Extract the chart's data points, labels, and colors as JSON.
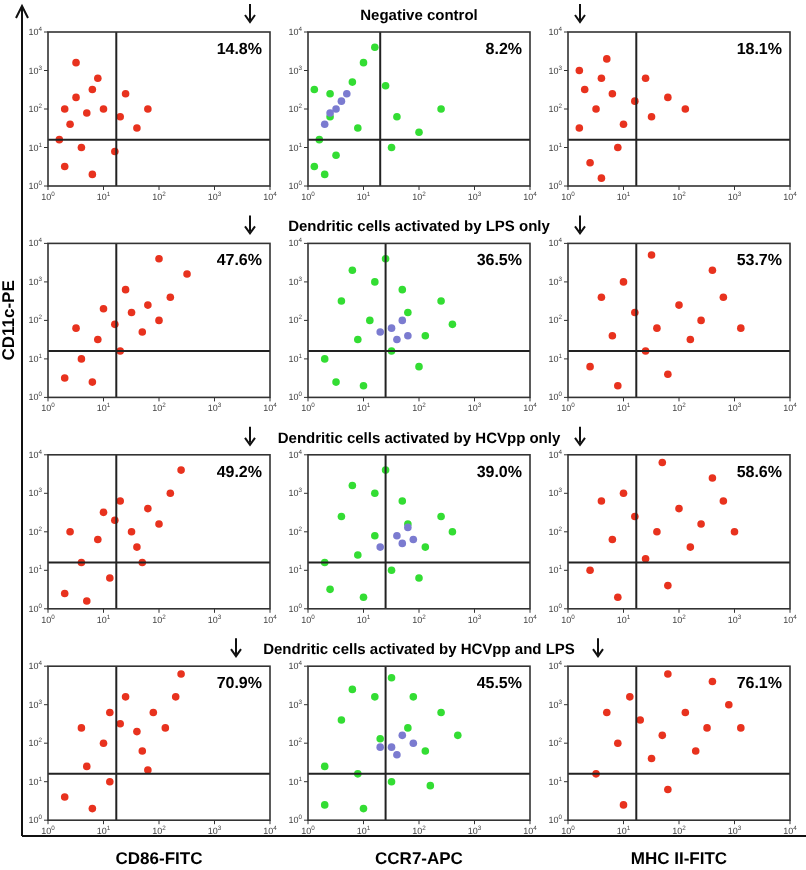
{
  "chart_data": [
    {
      "type": "scatter",
      "annotations": [
        "14.8%"
      ],
      "log": "xy",
      "xlim": [
        1,
        10000
      ],
      "ylim": [
        1,
        10000
      ],
      "xticks": [
        {
          "value": 1,
          "label": "10$^{0}$"
        },
        {
          "value": 10,
          "label": "10$^{1}$"
        },
        {
          "value": 100,
          "label": "10$^{2}$"
        },
        {
          "value": 1000,
          "label": "10$^{3}$"
        },
        {
          "value": 10000,
          "label": "10$^{4}$"
        }
      ],
      "yticks": [
        {
          "value": 1,
          "label": "10$^{0}$"
        },
        {
          "value": 10,
          "label": "10$^{1}$"
        },
        {
          "value": 100,
          "label": "10$^{2}$"
        },
        {
          "value": 1000,
          "label": "10$^{3}$"
        },
        {
          "value": 10000,
          "label": "10$^{4}$"
        }
      ],
      "marker": "circle",
      "ref_lines": [
        {
          "axis": "x",
          "value": 17
        },
        {
          "axis": "y",
          "value": 16
        }
      ],
      "series": [
        {
          "color": "#e8321e",
          "x": [
            2,
            3.2,
            5,
            2.5,
            6.3,
            1.6,
            4,
            10,
            20,
            40,
            63,
            7.9,
            2,
            6.3,
            16,
            25,
            3.2
          ],
          "values": [
            100,
            200,
            79,
            40,
            320,
            16,
            10,
            100,
            63,
            32,
            100,
            630,
            3.2,
            2,
            7.9,
            250,
            1600
          ]
        }
      ]
    },
    {
      "type": "scatter",
      "title": "Negative control",
      "annotations": [
        "8.2%"
      ],
      "log": "xy",
      "xlim": [
        1,
        10000
      ],
      "ylim": [
        1,
        10000
      ],
      "xticks": [
        {
          "value": 1,
          "label": "10$^{0}$"
        },
        {
          "value": 10,
          "label": "10$^{1}$"
        },
        {
          "value": 100,
          "label": "10$^{2}$"
        },
        {
          "value": 1000,
          "label": "10$^{3}$"
        },
        {
          "value": 10000,
          "label": "10$^{4}$"
        }
      ],
      "yticks": [
        {
          "value": 1,
          "label": "10$^{0}$"
        },
        {
          "value": 10,
          "label": "10$^{1}$"
        },
        {
          "value": 100,
          "label": "10$^{2}$"
        },
        {
          "value": 1000,
          "label": "10$^{3}$"
        },
        {
          "value": 10000,
          "label": "10$^{4}$"
        }
      ],
      "marker": "circle",
      "ref_lines": [
        {
          "axis": "x",
          "value": 20
        },
        {
          "axis": "y",
          "value": 16
        }
      ],
      "series": [
        {
          "color": "#33dd33",
          "x": [
            1.3,
            1.6,
            2.5,
            2.5,
            6.3,
            10,
            16,
            2,
            7.9,
            32,
            40,
            100,
            250,
            1.3,
            3.2,
            25
          ],
          "values": [
            3.2,
            16,
            63,
            250,
            500,
            1600,
            4000,
            2,
            32,
            10,
            63,
            25,
            100,
            320,
            6.3,
            400
          ]
        },
        {
          "color": "#7b7bd0",
          "x": [
            2,
            3.2,
            5,
            2.5,
            4
          ],
          "values": [
            40,
            100,
            250,
            79,
            160
          ]
        }
      ]
    },
    {
      "type": "scatter",
      "annotations": [
        "18.1%"
      ],
      "log": "xy",
      "xlim": [
        1,
        10000
      ],
      "ylim": [
        1,
        10000
      ],
      "xticks": [
        {
          "value": 1,
          "label": "10$^{0}$"
        },
        {
          "value": 10,
          "label": "10$^{1}$"
        },
        {
          "value": 100,
          "label": "10$^{2}$"
        },
        {
          "value": 1000,
          "label": "10$^{3}$"
        },
        {
          "value": 10000,
          "label": "10$^{4}$"
        }
      ],
      "yticks": [
        {
          "value": 1,
          "label": "10$^{0}$"
        },
        {
          "value": 10,
          "label": "10$^{1}$"
        },
        {
          "value": 100,
          "label": "10$^{2}$"
        },
        {
          "value": 1000,
          "label": "10$^{3}$"
        },
        {
          "value": 10000,
          "label": "10$^{4}$"
        }
      ],
      "marker": "circle",
      "ref_lines": [
        {
          "axis": "x",
          "value": 17
        },
        {
          "axis": "y",
          "value": 16
        }
      ],
      "series": [
        {
          "color": "#e8321e",
          "x": [
            2,
            4,
            3.2,
            6.3,
            1.6,
            2.5,
            7.9,
            16,
            32,
            63,
            130,
            5,
            10,
            1.6,
            25,
            4
          ],
          "values": [
            320,
            630,
            100,
            250,
            32,
            4,
            10,
            160,
            63,
            200,
            100,
            2000,
            40,
            1000,
            630,
            1.6
          ]
        }
      ]
    },
    {
      "type": "scatter",
      "ylabel": "CD11c-PE",
      "annotations": [
        "47.6%"
      ],
      "log": "xy",
      "xlim": [
        1,
        10000
      ],
      "ylim": [
        1,
        10000
      ],
      "xticks": [
        {
          "value": 1,
          "label": "10$^{0}$"
        },
        {
          "value": 10,
          "label": "10$^{1}$"
        },
        {
          "value": 100,
          "label": "10$^{2}$"
        },
        {
          "value": 1000,
          "label": "10$^{3}$"
        },
        {
          "value": 10000,
          "label": "10$^{4}$"
        }
      ],
      "yticks": [
        {
          "value": 1,
          "label": "10$^{0}$"
        },
        {
          "value": 10,
          "label": "10$^{1}$"
        },
        {
          "value": 100,
          "label": "10$^{2}$"
        },
        {
          "value": 1000,
          "label": "10$^{3}$"
        },
        {
          "value": 10000,
          "label": "10$^{4}$"
        }
      ],
      "marker": "circle",
      "ref_lines": [
        {
          "axis": "x",
          "value": 17
        },
        {
          "axis": "y",
          "value": 16
        }
      ],
      "series": [
        {
          "color": "#e8321e",
          "x": [
            2,
            4,
            7.9,
            16,
            32,
            63,
            25,
            50,
            10,
            100,
            160,
            20,
            6.3,
            320,
            100,
            3.2
          ],
          "values": [
            3.2,
            10,
            32,
            79,
            160,
            250,
            630,
            50,
            200,
            100,
            400,
            16,
            2.5,
            1600,
            4000,
            63
          ]
        }
      ]
    },
    {
      "type": "scatter",
      "title": "Dendritic cells activated by LPS only",
      "annotations": [
        "36.5%"
      ],
      "log": "xy",
      "xlim": [
        1,
        10000
      ],
      "ylim": [
        1,
        10000
      ],
      "xticks": [
        {
          "value": 1,
          "label": "10$^{0}$"
        },
        {
          "value": 10,
          "label": "10$^{1}$"
        },
        {
          "value": 100,
          "label": "10$^{2}$"
        },
        {
          "value": 1000,
          "label": "10$^{3}$"
        },
        {
          "value": 10000,
          "label": "10$^{4}$"
        }
      ],
      "yticks": [
        {
          "value": 1,
          "label": "10$^{0}$"
        },
        {
          "value": 10,
          "label": "10$^{1}$"
        },
        {
          "value": 100,
          "label": "10$^{2}$"
        },
        {
          "value": 1000,
          "label": "10$^{3}$"
        },
        {
          "value": 10000,
          "label": "10$^{4}$"
        }
      ],
      "marker": "circle",
      "ref_lines": [
        {
          "axis": "x",
          "value": 25
        },
        {
          "axis": "y",
          "value": 16
        }
      ],
      "series": [
        {
          "color": "#33dd33",
          "x": [
            2,
            4,
            7.9,
            16,
            32,
            63,
            130,
            250,
            10,
            25,
            3.2,
            100,
            50,
            6.3,
            400,
            13
          ],
          "values": [
            10,
            320,
            32,
            1000,
            16,
            160,
            40,
            320,
            2,
            4000,
            2.5,
            6.3,
            630,
            2000,
            79,
            100
          ]
        },
        {
          "color": "#7b7bd0",
          "x": [
            32,
            50,
            40,
            20,
            63
          ],
          "values": [
            63,
            100,
            32,
            50,
            40
          ]
        }
      ]
    },
    {
      "type": "scatter",
      "annotations": [
        "53.7%"
      ],
      "log": "xy",
      "xlim": [
        1,
        10000
      ],
      "ylim": [
        1,
        10000
      ],
      "xticks": [
        {
          "value": 1,
          "label": "10$^{0}$"
        },
        {
          "value": 10,
          "label": "10$^{1}$"
        },
        {
          "value": 100,
          "label": "10$^{2}$"
        },
        {
          "value": 1000,
          "label": "10$^{3}$"
        },
        {
          "value": 10000,
          "label": "10$^{4}$"
        }
      ],
      "yticks": [
        {
          "value": 1,
          "label": "10$^{0}$"
        },
        {
          "value": 10,
          "label": "10$^{1}$"
        },
        {
          "value": 100,
          "label": "10$^{2}$"
        },
        {
          "value": 1000,
          "label": "10$^{3}$"
        },
        {
          "value": 10000,
          "label": "10$^{4}$"
        }
      ],
      "marker": "circle",
      "ref_lines": [
        {
          "axis": "x",
          "value": 17
        },
        {
          "axis": "y",
          "value": 16
        }
      ],
      "series": [
        {
          "color": "#e8321e",
          "x": [
            2.5,
            6.3,
            16,
            40,
            100,
            250,
            630,
            25,
            63,
            160,
            10,
            400,
            4,
            1300,
            32,
            7.9
          ],
          "values": [
            6.3,
            40,
            160,
            63,
            250,
            100,
            400,
            16,
            4,
            32,
            1000,
            2000,
            400,
            63,
            5000,
            2
          ]
        }
      ]
    },
    {
      "type": "scatter",
      "annotations": [
        "49.2%"
      ],
      "log": "xy",
      "xlim": [
        1,
        10000
      ],
      "ylim": [
        1,
        10000
      ],
      "xticks": [
        {
          "value": 1,
          "label": "10$^{0}$"
        },
        {
          "value": 10,
          "label": "10$^{1}$"
        },
        {
          "value": 100,
          "label": "10$^{2}$"
        },
        {
          "value": 1000,
          "label": "10$^{3}$"
        },
        {
          "value": 10000,
          "label": "10$^{4}$"
        }
      ],
      "yticks": [
        {
          "value": 1,
          "label": "10$^{0}$"
        },
        {
          "value": 10,
          "label": "10$^{1}$"
        },
        {
          "value": 100,
          "label": "10$^{2}$"
        },
        {
          "value": 1000,
          "label": "10$^{3}$"
        },
        {
          "value": 10000,
          "label": "10$^{4}$"
        }
      ],
      "marker": "circle",
      "ref_lines": [
        {
          "axis": "x",
          "value": 17
        },
        {
          "axis": "y",
          "value": 16
        }
      ],
      "series": [
        {
          "color": "#e8321e",
          "x": [
            2,
            4,
            7.9,
            16,
            32,
            63,
            20,
            40,
            10,
            100,
            160,
            13,
            5,
            250,
            2.5,
            50
          ],
          "values": [
            2.5,
            16,
            63,
            200,
            100,
            400,
            630,
            40,
            320,
            160,
            1000,
            6.3,
            1.6,
            4000,
            100,
            16
          ]
        }
      ]
    },
    {
      "type": "scatter",
      "title": "Dendritic cells activated by HCVpp only",
      "annotations": [
        "39.0%"
      ],
      "log": "xy",
      "xlim": [
        1,
        10000
      ],
      "ylim": [
        1,
        10000
      ],
      "xticks": [
        {
          "value": 1,
          "label": "10$^{0}$"
        },
        {
          "value": 10,
          "label": "10$^{1}$"
        },
        {
          "value": 100,
          "label": "10$^{2}$"
        },
        {
          "value": 1000,
          "label": "10$^{3}$"
        },
        {
          "value": 10000,
          "label": "10$^{4}$"
        }
      ],
      "yticks": [
        {
          "value": 1,
          "label": "10$^{0}$"
        },
        {
          "value": 10,
          "label": "10$^{1}$"
        },
        {
          "value": 100,
          "label": "10$^{2}$"
        },
        {
          "value": 1000,
          "label": "10$^{3}$"
        },
        {
          "value": 10000,
          "label": "10$^{4}$"
        }
      ],
      "marker": "circle",
      "ref_lines": [
        {
          "axis": "x",
          "value": 25
        },
        {
          "axis": "y",
          "value": 16
        }
      ],
      "series": [
        {
          "color": "#33dd33",
          "x": [
            2,
            4,
            7.9,
            16,
            32,
            63,
            130,
            250,
            10,
            25,
            2.5,
            100,
            50,
            6.3,
            400,
            16
          ],
          "values": [
            16,
            250,
            25,
            1000,
            10,
            160,
            40,
            250,
            2,
            4000,
            3.2,
            6.3,
            630,
            1600,
            100,
            79
          ]
        },
        {
          "color": "#7b7bd0",
          "x": [
            40,
            63,
            50,
            20,
            79
          ],
          "values": [
            79,
            130,
            50,
            40,
            63
          ]
        }
      ]
    },
    {
      "type": "scatter",
      "annotations": [
        "58.6%"
      ],
      "log": "xy",
      "xlim": [
        1,
        10000
      ],
      "ylim": [
        1,
        10000
      ],
      "xticks": [
        {
          "value": 1,
          "label": "10$^{0}$"
        },
        {
          "value": 10,
          "label": "10$^{1}$"
        },
        {
          "value": 100,
          "label": "10$^{2}$"
        },
        {
          "value": 1000,
          "label": "10$^{3}$"
        },
        {
          "value": 10000,
          "label": "10$^{4}$"
        }
      ],
      "yticks": [
        {
          "value": 1,
          "label": "10$^{0}$"
        },
        {
          "value": 10,
          "label": "10$^{1}$"
        },
        {
          "value": 100,
          "label": "10$^{2}$"
        },
        {
          "value": 1000,
          "label": "10$^{3}$"
        },
        {
          "value": 10000,
          "label": "10$^{4}$"
        }
      ],
      "marker": "circle",
      "ref_lines": [
        {
          "axis": "x",
          "value": 17
        },
        {
          "axis": "y",
          "value": 16
        }
      ],
      "series": [
        {
          "color": "#e8321e",
          "x": [
            2.5,
            6.3,
            16,
            40,
            100,
            250,
            630,
            25,
            63,
            160,
            10,
            400,
            4,
            1000,
            50,
            7.9
          ],
          "values": [
            10,
            63,
            250,
            100,
            400,
            160,
            630,
            20,
            4,
            40,
            1000,
            2500,
            630,
            100,
            6300,
            2
          ]
        }
      ]
    },
    {
      "type": "scatter",
      "xlabel": "CD86-FITC",
      "annotations": [
        "70.9%"
      ],
      "log": "xy",
      "xlim": [
        1,
        10000
      ],
      "ylim": [
        1,
        10000
      ],
      "xticks": [
        {
          "value": 1,
          "label": "10$^{0}$"
        },
        {
          "value": 10,
          "label": "10$^{1}$"
        },
        {
          "value": 100,
          "label": "10$^{2}$"
        },
        {
          "value": 1000,
          "label": "10$^{3}$"
        },
        {
          "value": 10000,
          "label": "10$^{4}$"
        }
      ],
      "yticks": [
        {
          "value": 1,
          "label": "10$^{0}$"
        },
        {
          "value": 10,
          "label": "10$^{1}$"
        },
        {
          "value": 100,
          "label": "10$^{2}$"
        },
        {
          "value": 1000,
          "label": "10$^{3}$"
        },
        {
          "value": 10000,
          "label": "10$^{4}$"
        }
      ],
      "marker": "circle",
      "ref_lines": [
        {
          "axis": "x",
          "value": 17
        },
        {
          "axis": "y",
          "value": 16
        }
      ],
      "series": [
        {
          "color": "#e8321e",
          "x": [
            2,
            5,
            10,
            20,
            40,
            79,
            25,
            50,
            13,
            130,
            200,
            13,
            6.3,
            250,
            4,
            63
          ],
          "values": [
            4,
            25,
            100,
            320,
            200,
            630,
            1600,
            63,
            630,
            250,
            1600,
            10,
            2,
            6300,
            250,
            20
          ]
        }
      ]
    },
    {
      "type": "scatter",
      "title": "Dendritic cells activated by HCVpp and LPS",
      "xlabel": "CCR7-APC",
      "annotations": [
        "45.5%"
      ],
      "log": "xy",
      "xlim": [
        1,
        10000
      ],
      "ylim": [
        1,
        10000
      ],
      "xticks": [
        {
          "value": 1,
          "label": "10$^{0}$"
        },
        {
          "value": 10,
          "label": "10$^{1}$"
        },
        {
          "value": 100,
          "label": "10$^{2}$"
        },
        {
          "value": 1000,
          "label": "10$^{3}$"
        },
        {
          "value": 10000,
          "label": "10$^{4}$"
        }
      ],
      "yticks": [
        {
          "value": 1,
          "label": "10$^{0}$"
        },
        {
          "value": 10,
          "label": "10$^{1}$"
        },
        {
          "value": 100,
          "label": "10$^{2}$"
        },
        {
          "value": 1000,
          "label": "10$^{3}$"
        },
        {
          "value": 10000,
          "label": "10$^{4}$"
        }
      ],
      "marker": "circle",
      "ref_lines": [
        {
          "axis": "x",
          "value": 25
        },
        {
          "axis": "y",
          "value": 16
        }
      ],
      "series": [
        {
          "color": "#33dd33",
          "x": [
            2,
            4,
            7.9,
            16,
            32,
            63,
            130,
            250,
            10,
            32,
            2,
            160,
            79,
            6.3,
            500,
            20
          ],
          "values": [
            25,
            400,
            16,
            1600,
            10,
            250,
            63,
            630,
            2,
            5000,
            2.5,
            7.9,
            1600,
            2500,
            160,
            130
          ]
        },
        {
          "color": "#7b7bd0",
          "x": [
            32,
            50,
            40,
            20,
            79
          ],
          "values": [
            79,
            160,
            50,
            79,
            100
          ]
        }
      ]
    },
    {
      "type": "scatter",
      "xlabel": "MHC II-FITC",
      "annotations": [
        "76.1%"
      ],
      "log": "xy",
      "xlim": [
        1,
        10000
      ],
      "ylim": [
        1,
        10000
      ],
      "xticks": [
        {
          "value": 1,
          "label": "10$^{0}$"
        },
        {
          "value": 10,
          "label": "10$^{1}$"
        },
        {
          "value": 100,
          "label": "10$^{2}$"
        },
        {
          "value": 1000,
          "label": "10$^{3}$"
        },
        {
          "value": 10000,
          "label": "10$^{4}$"
        }
      ],
      "yticks": [
        {
          "value": 1,
          "label": "10$^{0}$"
        },
        {
          "value": 10,
          "label": "10$^{1}$"
        },
        {
          "value": 100,
          "label": "10$^{2}$"
        },
        {
          "value": 1000,
          "label": "10$^{3}$"
        },
        {
          "value": 10000,
          "label": "10$^{4}$"
        }
      ],
      "marker": "circle",
      "ref_lines": [
        {
          "axis": "x",
          "value": 17
        },
        {
          "axis": "y",
          "value": 16
        }
      ],
      "series": [
        {
          "color": "#e8321e",
          "x": [
            3.2,
            7.9,
            20,
            50,
            130,
            320,
            790,
            32,
            63,
            200,
            13,
            400,
            5,
            1300,
            63,
            10
          ],
          "values": [
            16,
            100,
            400,
            160,
            630,
            250,
            1000,
            40,
            6.3,
            63,
            1600,
            4000,
            630,
            250,
            6300,
            2.5
          ]
        }
      ]
    }
  ]
}
